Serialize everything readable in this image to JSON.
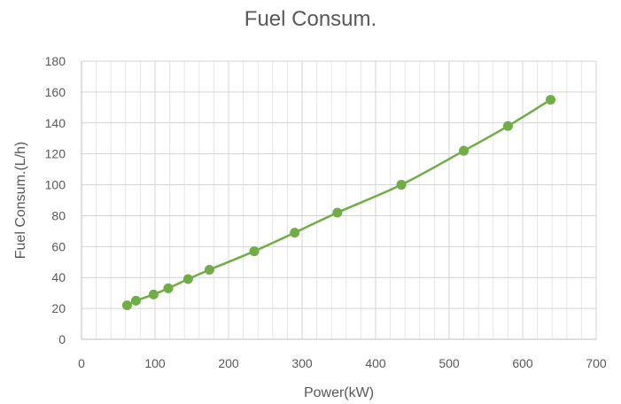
{
  "chart_data": {
    "type": "scatter",
    "title": "Fuel Consum.",
    "xlabel": "Power(kW)",
    "ylabel": "Fuel Consum.(L/h)",
    "xlim": [
      0,
      700
    ],
    "ylim": [
      0,
      180
    ],
    "x_ticks": [
      0,
      100,
      200,
      300,
      400,
      500,
      600,
      700
    ],
    "y_ticks": [
      0,
      20,
      40,
      60,
      80,
      100,
      120,
      140,
      160,
      180
    ],
    "grid": true,
    "minor_grid_x": true,
    "trendline": true,
    "series": [
      {
        "color": "#70ad47",
        "x": [
          62,
          74,
          98,
          118,
          145,
          174,
          235,
          290,
          348,
          435,
          520,
          580,
          638
        ],
        "y": [
          22,
          25,
          29,
          33,
          39,
          45,
          57,
          69,
          82,
          100,
          122,
          138,
          155
        ]
      }
    ]
  }
}
